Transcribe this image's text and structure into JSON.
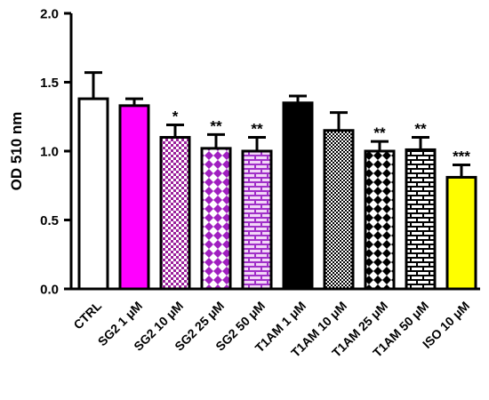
{
  "chart_data": {
    "type": "bar",
    "ylabel": "OD 510 nm",
    "ylim": [
      0,
      2.0
    ],
    "yticks": [
      "0.0",
      "0.5",
      "1.0",
      "1.5",
      "2.0"
    ],
    "categories": [
      "CTRL",
      "SG2 1 μM",
      "SG2 10 μM",
      "SG2 25 μM",
      "SG2 50 μM",
      "T1AM 1 μM",
      "T1AM 10 μM",
      "T1AM 25 μM",
      "T1AM 50 μM",
      "ISO 10 μM"
    ],
    "values": [
      1.38,
      1.33,
      1.1,
      1.02,
      1.0,
      1.35,
      1.15,
      1.0,
      1.01,
      0.81
    ],
    "errors": [
      0.19,
      0.05,
      0.09,
      0.1,
      0.1,
      0.05,
      0.13,
      0.07,
      0.09,
      0.09
    ],
    "significance": [
      "",
      "",
      "*",
      "**",
      "**",
      "",
      "",
      "**",
      "**",
      "***"
    ],
    "fills": [
      {
        "pattern": "solid",
        "color": "#ffffff"
      },
      {
        "pattern": "solid",
        "color": "#ff00ff"
      },
      {
        "pattern": "checker",
        "color": "#9b1f9b"
      },
      {
        "pattern": "diamond",
        "color": "#a020c0"
      },
      {
        "pattern": "brick",
        "color": "#a030c8"
      },
      {
        "pattern": "solid",
        "color": "#000000"
      },
      {
        "pattern": "dots",
        "color": "#000000"
      },
      {
        "pattern": "diamond",
        "color": "#000000"
      },
      {
        "pattern": "brick",
        "color": "#000000"
      },
      {
        "pattern": "solid",
        "color": "#ffff00"
      }
    ]
  }
}
